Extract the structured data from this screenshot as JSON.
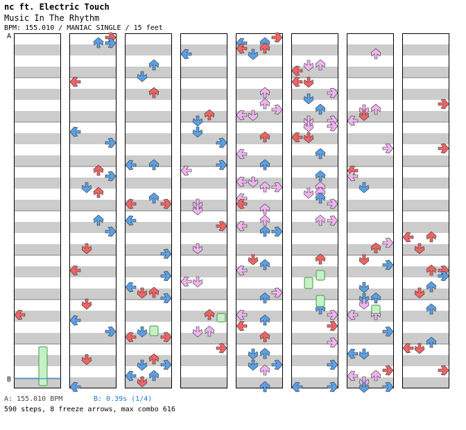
{
  "header": {
    "artist": "nc ft. Electric Touch",
    "title": "Music In The Rhythm",
    "meta": "BPM: 155.010 / MANIAC SINGLE / 15 feet"
  },
  "markers": {
    "a": "A",
    "b": "B"
  },
  "footer": {
    "marker_a": "A: 155.010 BPM",
    "marker_b": "B: 0.39s (1/4)",
    "stats": "590 steps, 8 freeze arrows, max combo 616"
  },
  "colors": {
    "stripe": "#cccccc",
    "measure_line": "#808080",
    "border": "#000000",
    "arrow_red": "#f06464",
    "arrow_blue": "#5aa0e6",
    "arrow_pink": "#f0b4f0",
    "freeze": "#c8f0c8",
    "freeze_border": "#3c9c3c",
    "marker_b_line": "#1976d2"
  },
  "columns": [
    {
      "label": "column-1"
    },
    {
      "label": "column-2"
    },
    {
      "label": "column-3"
    },
    {
      "label": "column-4"
    },
    {
      "label": "column-5"
    },
    {
      "label": "column-6"
    },
    {
      "label": "column-7"
    },
    {
      "label": "column-8"
    }
  ],
  "stepchart_icons": {
    "left": "left-arrow-icon",
    "down": "down-arrow-icon",
    "up": "up-arrow-icon",
    "right": "right-arrow-icon",
    "freeze": "freeze-arrow-icon"
  }
}
